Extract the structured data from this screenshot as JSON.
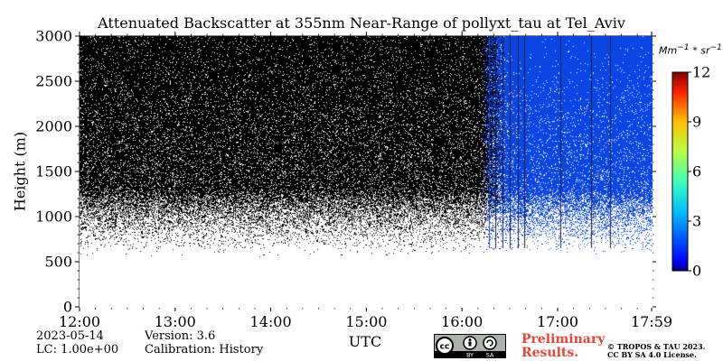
{
  "chart_data": {
    "type": "heatmap",
    "title": "Attenuated Backscatter at 355nm Near-Range of pollyxt_tau at Tel_Aviv",
    "xlabel": "UTC",
    "ylabel": "Height (m)",
    "x_ticks": [
      "12:00",
      "13:00",
      "14:00",
      "15:00",
      "16:00",
      "17:00",
      "17:59"
    ],
    "x_tick_values_hours": [
      12,
      13,
      14,
      15,
      16,
      17,
      17.983
    ],
    "xlim_hours": [
      12,
      17.983
    ],
    "y_ticks": [
      "0",
      "500",
      "1000",
      "1500",
      "2000",
      "2500",
      "3000"
    ],
    "y_tick_values": [
      0,
      500,
      1000,
      1500,
      2000,
      2500,
      3000
    ],
    "ylim": [
      0,
      3000
    ],
    "colorbar": {
      "label": "Mm^-1 * sr^-1",
      "ticks": [
        "0",
        "3",
        "6",
        "9",
        "12"
      ],
      "tick_values": [
        0,
        3,
        6,
        9,
        12
      ],
      "range": [
        0,
        12
      ],
      "colormap": "jet"
    },
    "regions": {
      "noise_black_until_hour": 16.2,
      "noise_blue_from_hour": 16.45,
      "noise_floor_height_m": 550,
      "noise_fade_top_m": 1300
    },
    "vertical_stripe_hours": [
      16.28,
      16.35,
      16.42,
      16.5,
      16.58,
      16.65,
      17.03,
      17.35,
      17.55
    ]
  },
  "meta": {
    "date": "2023-05-14",
    "lc": "LC: 1.00e+00",
    "version": "Version: 3.6",
    "calibration": "Calibration: History",
    "preliminary_line1": "Preliminary",
    "preliminary_line2": "Results.",
    "copyright_line1": "© TROPOS & TAU 2023.",
    "copyright_line2": "CC BY SA 4.0 License.",
    "cc_badge": [
      "BY",
      "SA"
    ]
  },
  "colors": {
    "noise_black": "#000000",
    "noise_blue": "#0a46e6",
    "background": "#ffffff"
  }
}
